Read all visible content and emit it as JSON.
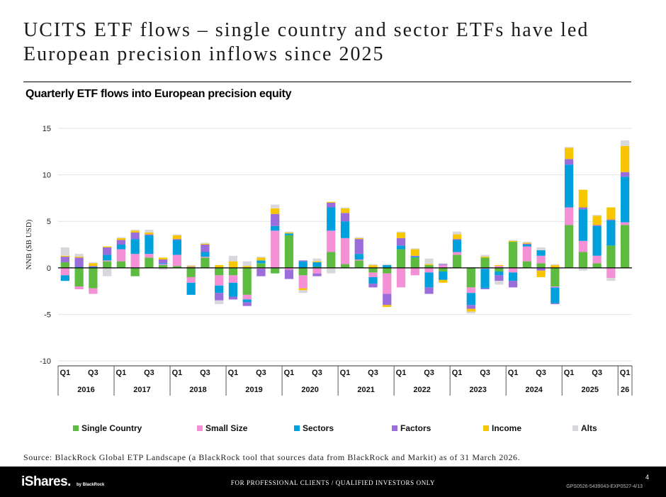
{
  "header": {
    "title": "UCITS ETF flows – single country and sector ETFs have led European precision inflows since 2025",
    "subtitle": "Quarterly ETF flows into European precision equity"
  },
  "source": "Source: BlackRock Global ETP Landscape (a BlackRock tool that sources data from BlackRock and Markit) as of 31 March 2026.",
  "footer": {
    "logo": "iShares.",
    "logo_sub": "by BlackRock",
    "disclaimer": "FOR PROFESSIONAL CLIENTS / QUALIFIED INVESTORS ONLY",
    "page_number": "4",
    "code": "GPS0526-5439043-EXP0527-4/13"
  },
  "chart_data": {
    "type": "bar",
    "stacked": true,
    "title": "Quarterly ETF flows into European precision equity",
    "ylabel": "NNB ($B USD)",
    "xlabel": "",
    "ylim": [
      -10,
      15
    ],
    "yticks": [
      -10,
      -5,
      0,
      5,
      10,
      15
    ],
    "grid": true,
    "legend_position": "bottom",
    "year_labels": [
      "2016",
      "2017",
      "2018",
      "2019",
      "2020",
      "2021",
      "2022",
      "2023",
      "2024",
      "2025",
      "26"
    ],
    "quarter_labels": [
      "Q1",
      "Q3"
    ],
    "categories": [
      "2016 Q1",
      "2016 Q2",
      "2016 Q3",
      "2016 Q4",
      "2017 Q1",
      "2017 Q2",
      "2017 Q3",
      "2017 Q4",
      "2018 Q1",
      "2018 Q2",
      "2018 Q3",
      "2018 Q4",
      "2019 Q1",
      "2019 Q2",
      "2019 Q3",
      "2019 Q4",
      "2020 Q1",
      "2020 Q2",
      "2020 Q3",
      "2020 Q4",
      "2021 Q1",
      "2021 Q2",
      "2021 Q3",
      "2021 Q4",
      "2022 Q1",
      "2022 Q2",
      "2022 Q3",
      "2022 Q4",
      "2023 Q1",
      "2023 Q2",
      "2023 Q3",
      "2023 Q4",
      "2024 Q1",
      "2024 Q2",
      "2024 Q3",
      "2024 Q4",
      "2025 Q1",
      "2025 Q2",
      "2025 Q3",
      "2025 Q4",
      "2026 Q1"
    ],
    "series": [
      {
        "name": "Single Country",
        "color": "#5dbb3f",
        "values": [
          0.6,
          -2.0,
          -2.2,
          0.7,
          0.7,
          -0.9,
          1.1,
          0.3,
          0.2,
          -1.0,
          1.1,
          -0.8,
          -0.8,
          -2.9,
          0.5,
          -0.6,
          3.5,
          -0.8,
          0.1,
          1.7,
          0.4,
          0.8,
          -0.5,
          -0.6,
          2.0,
          1.1,
          0.3,
          -0.4,
          1.4,
          -2.1,
          1.1,
          -0.4,
          2.8,
          0.7,
          0.5,
          -2.0,
          4.6,
          1.7,
          0.5,
          2.4,
          4.6
        ]
      },
      {
        "name": "Small Size",
        "color": "#f490d5",
        "values": [
          -0.8,
          -0.3,
          -0.6,
          0.1,
          1.3,
          1.5,
          0.4,
          0.1,
          1.2,
          -0.6,
          0.1,
          -1.1,
          -0.8,
          -0.5,
          -0.1,
          4.0,
          -0.2,
          -1.4,
          -0.6,
          2.3,
          2.8,
          0.1,
          -0.5,
          -2.2,
          -2.1,
          -0.8,
          -0.5,
          0.3,
          0.3,
          -0.6,
          -0.1,
          0.2,
          -0.5,
          1.6,
          0.8,
          -0.1,
          1.9,
          1.2,
          0.8,
          -1.1,
          0.3
        ]
      },
      {
        "name": "Sectors",
        "color": "#00a0dd",
        "values": [
          -0.6,
          0.1,
          0.1,
          0.6,
          0.5,
          1.6,
          2.0,
          0.1,
          1.6,
          -1.3,
          0.5,
          -0.8,
          -1.5,
          -0.3,
          0.3,
          0.5,
          0.2,
          0.7,
          0.5,
          2.5,
          1.8,
          0.6,
          -0.7,
          0.3,
          0.4,
          0.1,
          -1.6,
          -0.9,
          1.3,
          -1.3,
          -2.1,
          -0.4,
          -0.9,
          0.2,
          0.6,
          -1.7,
          4.6,
          3.4,
          3.2,
          2.7,
          4.9
        ]
      },
      {
        "name": "Factors",
        "color": "#9a6ddb",
        "values": [
          0.6,
          1.0,
          0.1,
          0.8,
          0.5,
          0.7,
          0.1,
          0.4,
          0.1,
          0.1,
          0.8,
          -0.8,
          -0.3,
          -0.4,
          -0.8,
          1.3,
          -1.0,
          0.1,
          -0.3,
          0.5,
          0.9,
          1.6,
          -0.4,
          -1.2,
          0.8,
          0.1,
          -0.7,
          0.1,
          0.1,
          -0.4,
          -0.1,
          -0.6,
          -0.7,
          0.1,
          -0.3,
          -0.1,
          0.6,
          0.2,
          0.1,
          0.1,
          0.5
        ]
      },
      {
        "name": "Income",
        "color": "#f7c600",
        "values": [
          0.1,
          0.1,
          0.3,
          0.1,
          0.2,
          0.2,
          0.2,
          0.2,
          0.4,
          0.1,
          0.1,
          0.3,
          0.7,
          0.2,
          0.3,
          0.6,
          0.1,
          -0.2,
          0.1,
          0.1,
          0.5,
          0.1,
          0.3,
          -0.2,
          0.6,
          0.7,
          0.1,
          -0.3,
          0.5,
          -0.3,
          0.1,
          0.1,
          0.1,
          0.1,
          -0.7,
          0.3,
          1.2,
          1.9,
          1.0,
          1.3,
          2.8
        ]
      },
      {
        "name": "Alts",
        "color": "#d8d8dc",
        "values": [
          0.9,
          0.3,
          0.1,
          -0.9,
          0.1,
          0.1,
          0.3,
          -0.2,
          0.1,
          0.1,
          0.1,
          -0.4,
          0.6,
          0.5,
          0.1,
          0.4,
          0.1,
          -0.3,
          0.3,
          -0.6,
          0.1,
          0.1,
          0.1,
          0.1,
          0.1,
          0.1,
          0.6,
          0.1,
          0.3,
          -0.2,
          0.2,
          -0.4,
          0.1,
          0.1,
          0.3,
          0.1,
          0.1,
          -0.3,
          0.1,
          -0.3,
          0.6
        ]
      }
    ]
  }
}
